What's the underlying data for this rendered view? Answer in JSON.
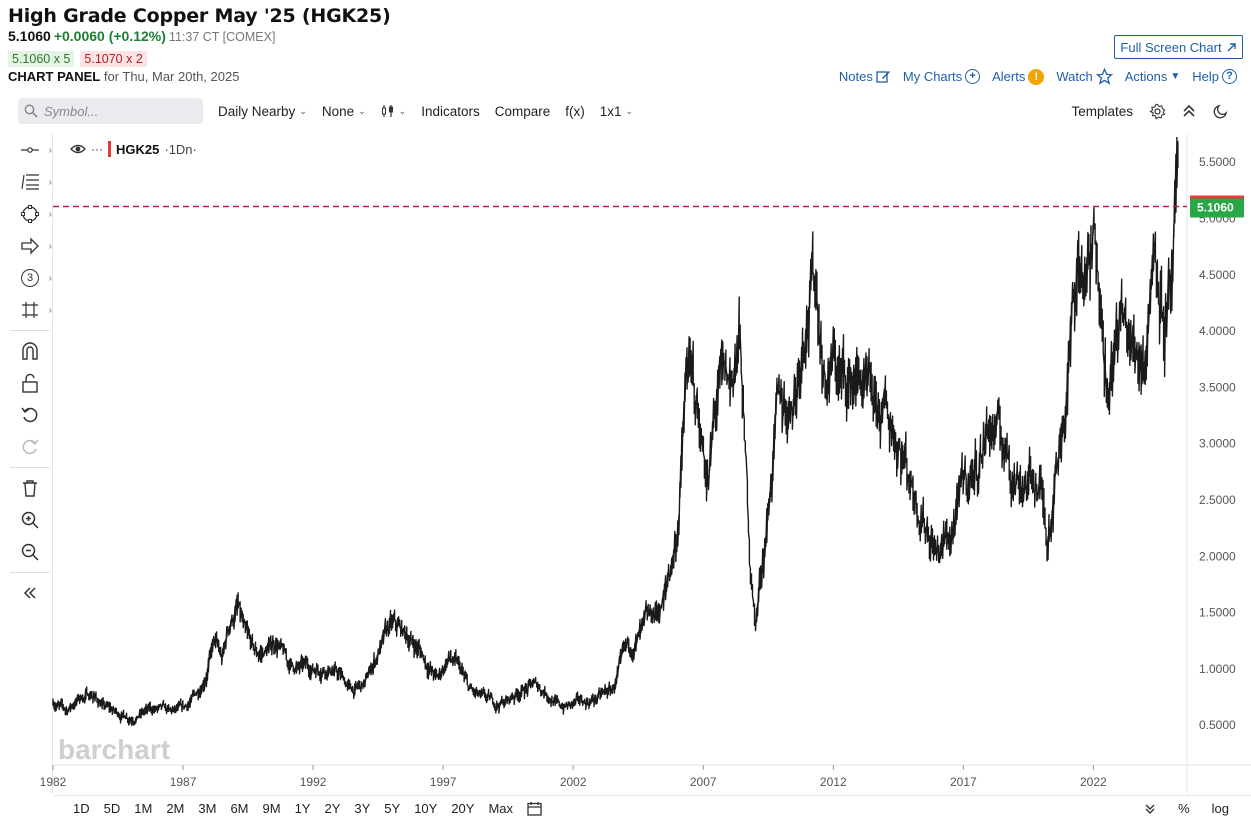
{
  "header": {
    "title": "High Grade Copper May '25 (HGK25)",
    "last": "5.1060",
    "change": "+0.0060 (+0.12%)",
    "time": "11:37 CT [COMEX]",
    "bid": "5.1060 x 5",
    "ask": "5.1070 x 2",
    "panel_label": "CHART PANEL",
    "panel_date": "for Thu, Mar 20th, 2025",
    "fullscreen_label": "Full Screen Chart"
  },
  "links": {
    "notes": "Notes",
    "mycharts": "My Charts",
    "alerts": "Alerts",
    "watch": "Watch",
    "actions": "Actions",
    "help": "Help"
  },
  "toolbar": {
    "search_placeholder": "Symbol...",
    "aggregation": "Daily Nearby",
    "overlay": "None",
    "indicators": "Indicators",
    "compare": "Compare",
    "fx": "f(x)",
    "layout": "1x1",
    "templates": "Templates"
  },
  "legend": {
    "symbol": "HGK25",
    "suffix": "·1Dn·"
  },
  "watermark": "barchart",
  "bottom": {
    "periods": [
      "1D",
      "5D",
      "1M",
      "2M",
      "3M",
      "6M",
      "9M",
      "1Y",
      "2Y",
      "3Y",
      "5Y",
      "10Y",
      "20Y",
      "Max"
    ],
    "pct": "%",
    "log": "log"
  },
  "colors": {
    "accent": "#1f5fa8",
    "up": "#1e7e34",
    "down": "#b32020",
    "price_label": "#27a745",
    "last_line": "#c2185b",
    "bar": "#1a1a1a"
  },
  "chart_data": {
    "type": "line",
    "series": [
      {
        "values": [
          [
            1982.0,
            0.72
          ],
          [
            1982.5,
            0.62
          ],
          [
            1983.0,
            0.74
          ],
          [
            1983.5,
            0.78
          ],
          [
            1984.0,
            0.66
          ],
          [
            1984.5,
            0.6
          ],
          [
            1985.0,
            0.58
          ],
          [
            1985.5,
            0.62
          ],
          [
            1986.0,
            0.64
          ],
          [
            1986.5,
            0.6
          ],
          [
            1987.0,
            0.62
          ],
          [
            1987.3,
            0.7
          ],
          [
            1987.6,
            0.8
          ],
          [
            1987.9,
            1.0
          ],
          [
            1988.2,
            1.25
          ],
          [
            1988.5,
            1.05
          ],
          [
            1988.8,
            1.4
          ],
          [
            1989.1,
            1.55
          ],
          [
            1989.4,
            1.25
          ],
          [
            1989.8,
            1.1
          ],
          [
            1990.2,
            1.15
          ],
          [
            1990.6,
            1.25
          ],
          [
            1991.0,
            1.05
          ],
          [
            1991.5,
            1.0
          ],
          [
            1992.0,
            1.0
          ],
          [
            1992.5,
            1.05
          ],
          [
            1993.0,
            0.95
          ],
          [
            1993.5,
            0.8
          ],
          [
            1994.0,
            0.85
          ],
          [
            1994.5,
            1.15
          ],
          [
            1995.0,
            1.35
          ],
          [
            1995.5,
            1.3
          ],
          [
            1996.0,
            1.2
          ],
          [
            1996.4,
            1.05
          ],
          [
            1996.8,
            0.9
          ],
          [
            1997.2,
            1.1
          ],
          [
            1997.6,
            1.0
          ],
          [
            1998.0,
            0.8
          ],
          [
            1998.5,
            0.72
          ],
          [
            1999.0,
            0.68
          ],
          [
            1999.5,
            0.72
          ],
          [
            2000.0,
            0.82
          ],
          [
            2000.5,
            0.85
          ],
          [
            2001.0,
            0.8
          ],
          [
            2001.5,
            0.66
          ],
          [
            2002.0,
            0.68
          ],
          [
            2002.5,
            0.7
          ],
          [
            2003.0,
            0.75
          ],
          [
            2003.5,
            0.8
          ],
          [
            2004.0,
            1.1
          ],
          [
            2004.5,
            1.25
          ],
          [
            2005.0,
            1.4
          ],
          [
            2005.5,
            1.6
          ],
          [
            2006.0,
            2.2
          ],
          [
            2006.4,
            3.7
          ],
          [
            2006.8,
            3.2
          ],
          [
            2007.2,
            2.7
          ],
          [
            2007.6,
            3.5
          ],
          [
            2008.0,
            3.4
          ],
          [
            2008.4,
            3.9
          ],
          [
            2008.8,
            2.0
          ],
          [
            2009.0,
            1.4
          ],
          [
            2009.4,
            2.2
          ],
          [
            2009.8,
            3.2
          ],
          [
            2010.2,
            3.3
          ],
          [
            2010.6,
            3.6
          ],
          [
            2011.0,
            4.4
          ],
          [
            2011.3,
            4.5
          ],
          [
            2011.7,
            3.6
          ],
          [
            2012.0,
            3.7
          ],
          [
            2012.5,
            3.5
          ],
          [
            2013.0,
            3.6
          ],
          [
            2013.5,
            3.2
          ],
          [
            2014.0,
            3.2
          ],
          [
            2014.5,
            3.1
          ],
          [
            2015.0,
            2.7
          ],
          [
            2015.5,
            2.4
          ],
          [
            2016.0,
            2.05
          ],
          [
            2016.5,
            2.15
          ],
          [
            2017.0,
            2.6
          ],
          [
            2017.5,
            2.8
          ],
          [
            2018.0,
            3.2
          ],
          [
            2018.5,
            3.0
          ],
          [
            2019.0,
            2.75
          ],
          [
            2019.5,
            2.7
          ],
          [
            2020.0,
            2.6
          ],
          [
            2020.2,
            2.15
          ],
          [
            2020.6,
            2.9
          ],
          [
            2021.0,
            3.6
          ],
          [
            2021.4,
            4.6
          ],
          [
            2021.8,
            4.4
          ],
          [
            2022.2,
            4.8
          ],
          [
            2022.6,
            3.4
          ],
          [
            2023.0,
            4.1
          ],
          [
            2023.5,
            3.8
          ],
          [
            2024.0,
            3.9
          ],
          [
            2024.4,
            5.0
          ],
          [
            2024.7,
            4.2
          ],
          [
            2025.0,
            4.2
          ],
          [
            2025.2,
            4.9
          ],
          [
            2025.25,
            5.106
          ]
        ]
      }
    ],
    "last_price": 5.106,
    "ylim": [
      0.2,
      5.75
    ],
    "yticks": [
      0.5,
      1.0,
      1.5,
      2.0,
      2.5,
      3.0,
      3.5,
      4.0,
      4.5,
      5.0,
      5.5
    ],
    "xlim": [
      1982.0,
      2025.6
    ],
    "xticks": [
      {
        "v": 1982,
        "label": "1982"
      },
      {
        "v": 1987,
        "label": "1987"
      },
      {
        "v": 1992,
        "label": "1992"
      },
      {
        "v": 1997,
        "label": "1997"
      },
      {
        "v": 2002,
        "label": "2002"
      },
      {
        "v": 2007,
        "label": "2007"
      },
      {
        "v": 2012,
        "label": "2012"
      },
      {
        "v": 2017,
        "label": "2017"
      },
      {
        "v": 2022,
        "label": "2022"
      }
    ],
    "grid": false
  }
}
